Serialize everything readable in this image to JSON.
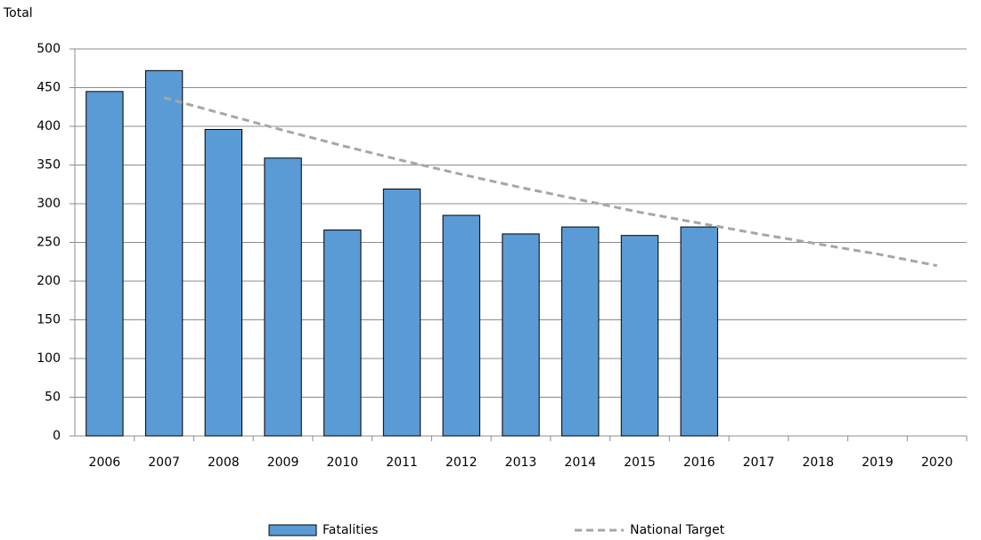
{
  "chart_data": {
    "type": "bar",
    "y_label": "Total",
    "categories": [
      "2006",
      "2007",
      "2008",
      "2009",
      "2010",
      "2011",
      "2012",
      "2013",
      "2014",
      "2015",
      "2016",
      "2017",
      "2018",
      "2019",
      "2020"
    ],
    "series": [
      {
        "name": "Fatalities",
        "type": "bar",
        "color": "#5b9bd5",
        "values": [
          445,
          472,
          396,
          359,
          266,
          319,
          285,
          261,
          270,
          259,
          270,
          null,
          null,
          null,
          null
        ]
      },
      {
        "name": "National Target",
        "type": "line",
        "color": "#a6a6a6",
        "dashed": true,
        "values": [
          null,
          437,
          416,
          395,
          375,
          356,
          338,
          321,
          305,
          289,
          275,
          261,
          248,
          235,
          220
        ]
      }
    ],
    "ylim": [
      0,
      500
    ],
    "yticks": [
      0,
      50,
      100,
      150,
      200,
      250,
      300,
      350,
      400,
      450,
      500
    ],
    "grid": true,
    "legend": "bottom"
  }
}
